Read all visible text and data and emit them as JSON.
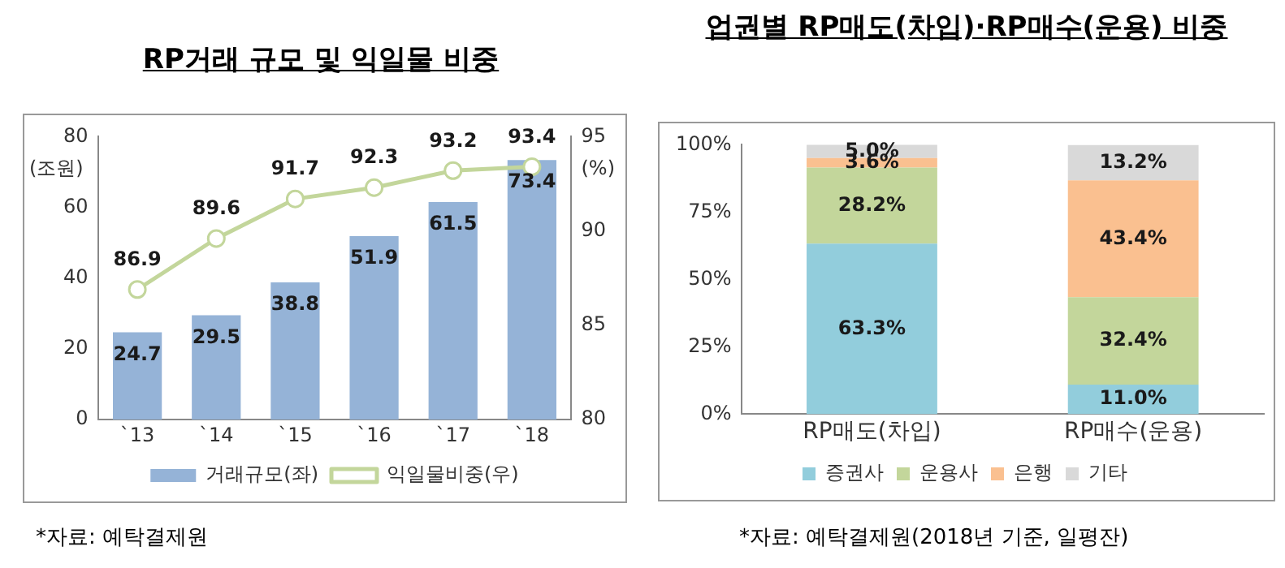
{
  "chart_data": [
    {
      "type": "bar",
      "title": "RP거래 규모 및 익일물 비중",
      "categories": [
        "`13",
        "`14",
        "`15",
        "`16",
        "`17",
        "`18"
      ],
      "series": [
        {
          "name": "거래규모(좌)",
          "type": "bar",
          "color": "#95b3d7",
          "values": [
            24.7,
            29.5,
            38.8,
            51.9,
            61.5,
            73.4
          ]
        },
        {
          "name": "익일물비중(우)",
          "type": "line",
          "axis": "y2",
          "color": "#c3d69b",
          "values": [
            86.9,
            89.6,
            91.7,
            92.3,
            93.2,
            93.4
          ]
        }
      ],
      "ylabel": "(조원)",
      "y2label": "(%)",
      "ylim": [
        0,
        80
      ],
      "yticks": [
        0,
        20,
        40,
        60,
        80
      ],
      "y2lim": [
        80,
        95
      ],
      "y2ticks": [
        80,
        85,
        90,
        95
      ],
      "data_labels": true,
      "legend": "bottom",
      "marker": "circle",
      "grid": false,
      "annotations": [
        "*자료: 예탁결제원"
      ]
    },
    {
      "type": "bar",
      "stacked": true,
      "title": "업권별 RP매도(차입)·RP매수(운용) 비중",
      "categories": [
        "RP매도(차입)",
        "RP매수(운용)"
      ],
      "series": [
        {
          "name": "증권사",
          "color": "#92cddc",
          "values": [
            63.3,
            11.0
          ],
          "value_labels": [
            "63.3%",
            "11.0%"
          ]
        },
        {
          "name": "운용사",
          "color": "#c3d69b",
          "values": [
            28.2,
            32.4
          ],
          "value_labels": [
            "28.2%",
            "32.4%"
          ]
        },
        {
          "name": "은행",
          "color": "#fac090",
          "values": [
            3.6,
            43.4
          ],
          "value_labels": [
            "3.6%",
            "43.4%"
          ]
        },
        {
          "name": "기타",
          "color": "#d9d9d9",
          "values": [
            5.0,
            13.2
          ],
          "value_labels": [
            "5.0%",
            "13.2%"
          ]
        }
      ],
      "ylim": [
        0,
        100
      ],
      "yticks": [
        {
          "value": 0,
          "label": "0%"
        },
        {
          "value": 25,
          "label": "25%"
        },
        {
          "value": 50,
          "label": "50%"
        },
        {
          "value": 75,
          "label": "75%"
        },
        {
          "value": 100,
          "label": "100%"
        }
      ],
      "legend": "bottom",
      "grid": false,
      "annotations": [
        "*자료: 예탁결제원(2018년 기준, 일평잔)"
      ]
    }
  ]
}
